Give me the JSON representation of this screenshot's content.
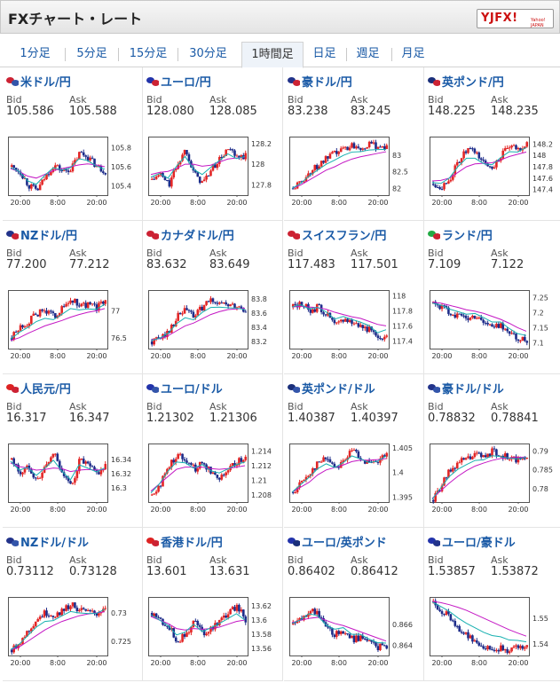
{
  "header": {
    "title": "FXチャート・レート",
    "logo_text": "YJFX!",
    "logo_sub": "Yahoo! JAPAN"
  },
  "tabs": [
    {
      "label": "1分足",
      "active": false
    },
    {
      "label": "5分足",
      "active": false
    },
    {
      "label": "15分足",
      "active": false
    },
    {
      "label": "30分足",
      "active": false
    },
    {
      "label": "1時間足",
      "active": true
    },
    {
      "label": "日足",
      "active": false
    },
    {
      "label": "週足",
      "active": false
    },
    {
      "label": "月足",
      "active": false
    }
  ],
  "labels": {
    "bid": "Bid",
    "ask": "Ask"
  },
  "colors": {
    "up": "#e32626",
    "down": "#1e2d8a",
    "ma_short": "#17b0b0",
    "ma_long": "#c418c4",
    "link": "#1a5aa6"
  },
  "pairs": [
    {
      "name": "米ドル/円",
      "flags": [
        "#cc2233",
        "#3355aa"
      ],
      "bid": "105.586",
      "ask": "105.588",
      "chart_data": {
        "type": "candlestick",
        "x_ticks": [
          "20:00",
          "8:00",
          "20:00"
        ],
        "y_ticks": [
          "105.8",
          "105.6",
          "105.4"
        ],
        "ylim": [
          105.3,
          105.9
        ],
        "path": [
          105.6,
          105.55,
          105.4,
          105.35,
          105.5,
          105.62,
          105.55,
          105.58,
          105.75,
          105.7,
          105.6,
          105.55
        ],
        "trend": [
          105.58,
          105.55,
          105.5,
          105.48,
          105.52,
          105.56,
          105.58,
          105.6,
          105.62,
          105.63,
          105.62,
          105.6
        ]
      }
    },
    {
      "name": "ユーロ/円",
      "flags": [
        "#2233aa",
        "#cc2233"
      ],
      "bid": "128.080",
      "ask": "128.085",
      "chart_data": {
        "type": "candlestick",
        "x_ticks": [
          "20:00",
          "8:00",
          "20:00"
        ],
        "y_ticks": [
          "128.2",
          "128",
          "127.8"
        ],
        "ylim": [
          127.7,
          128.25
        ],
        "path": [
          127.85,
          127.9,
          127.8,
          128.0,
          128.15,
          127.9,
          127.82,
          127.95,
          128.05,
          128.15,
          128.05,
          128.08
        ],
        "trend": [
          127.9,
          127.92,
          127.93,
          127.96,
          128.0,
          128.0,
          127.98,
          127.99,
          128.02,
          128.05,
          128.06,
          128.07
        ]
      }
    },
    {
      "name": "豪ドル/円",
      "flags": [
        "#22338a",
        "#cc2233"
      ],
      "bid": "83.238",
      "ask": "83.245",
      "chart_data": {
        "type": "candlestick",
        "x_ticks": [
          "20:00",
          "8:00",
          "20:00"
        ],
        "y_ticks": [
          "83",
          "82.5",
          "82"
        ],
        "ylim": [
          81.8,
          83.5
        ],
        "path": [
          82.0,
          82.2,
          82.5,
          82.7,
          82.9,
          83.05,
          83.2,
          83.3,
          83.25,
          83.3,
          83.28,
          83.24
        ],
        "trend": [
          82.0,
          82.1,
          82.25,
          82.4,
          82.55,
          82.65,
          82.78,
          82.88,
          82.95,
          83.0,
          83.05,
          83.1
        ]
      }
    },
    {
      "name": "英ポンド/円",
      "flags": [
        "#1a2f7a",
        "#cc2233"
      ],
      "bid": "148.225",
      "ask": "148.235",
      "chart_data": {
        "type": "candlestick",
        "x_ticks": [
          "20:00",
          "8:00",
          "20:00"
        ],
        "y_ticks": [
          "148.2",
          "148",
          "147.8",
          "147.6",
          "147.4"
        ],
        "ylim": [
          147.3,
          148.3
        ],
        "path": [
          147.5,
          147.45,
          147.6,
          147.9,
          148.1,
          148.05,
          147.85,
          147.8,
          148.0,
          148.15,
          148.1,
          148.22
        ],
        "trend": [
          147.55,
          147.56,
          147.6,
          147.7,
          147.8,
          147.85,
          147.86,
          147.87,
          147.92,
          147.98,
          148.02,
          148.06
        ]
      }
    },
    {
      "name": "NZドル/円",
      "flags": [
        "#22338a",
        "#cc2233"
      ],
      "bid": "77.200",
      "ask": "77.212",
      "chart_data": {
        "type": "candlestick",
        "x_ticks": [
          "20:00",
          "8:00",
          "20:00"
        ],
        "y_ticks": [
          "77",
          "76.5"
        ],
        "ylim": [
          76.3,
          77.35
        ],
        "path": [
          76.5,
          76.7,
          76.8,
          76.95,
          77.0,
          76.9,
          77.05,
          77.2,
          77.1,
          77.1,
          77.05,
          77.2
        ],
        "trend": [
          76.45,
          76.5,
          76.58,
          76.65,
          76.72,
          76.77,
          76.82,
          76.88,
          76.93,
          76.97,
          77.0,
          77.04
        ]
      }
    },
    {
      "name": "カナダドル/円",
      "flags": [
        "#cc2233",
        "#cc2233"
      ],
      "bid": "83.632",
      "ask": "83.649",
      "chart_data": {
        "type": "candlestick",
        "x_ticks": [
          "20:00",
          "8:00",
          "20:00"
        ],
        "y_ticks": [
          "83.8",
          "83.6",
          "83.4",
          "83.2"
        ],
        "ylim": [
          83.1,
          83.9
        ],
        "path": [
          83.2,
          83.25,
          83.35,
          83.55,
          83.65,
          83.55,
          83.7,
          83.78,
          83.75,
          83.7,
          83.68,
          83.63
        ],
        "trend": [
          83.22,
          83.24,
          83.28,
          83.35,
          83.42,
          83.46,
          83.52,
          83.58,
          83.62,
          83.65,
          83.66,
          83.67
        ]
      }
    },
    {
      "name": "スイスフラン/円",
      "flags": [
        "#cc2233",
        "#cc2233"
      ],
      "bid": "117.483",
      "ask": "117.501",
      "chart_data": {
        "type": "candlestick",
        "x_ticks": [
          "20:00",
          "8:00",
          "20:00"
        ],
        "y_ticks": [
          "118",
          "117.8",
          "117.6",
          "117.4"
        ],
        "ylim": [
          117.3,
          118.05
        ],
        "path": [
          117.85,
          117.9,
          117.8,
          117.85,
          117.75,
          117.6,
          117.7,
          117.65,
          117.6,
          117.55,
          117.4,
          117.5
        ],
        "trend": [
          117.85,
          117.86,
          117.85,
          117.84,
          117.82,
          117.78,
          117.75,
          117.72,
          117.7,
          117.66,
          117.62,
          117.6
        ]
      }
    },
    {
      "name": "ランド/円",
      "flags": [
        "#22aa44",
        "#cc2233"
      ],
      "bid": "7.109",
      "ask": "7.122",
      "chart_data": {
        "type": "candlestick",
        "x_ticks": [
          "20:00",
          "8:00",
          "20:00"
        ],
        "y_ticks": [
          "7.25",
          "7.2",
          "7.15",
          "7.1"
        ],
        "ylim": [
          7.08,
          7.27
        ],
        "path": [
          7.23,
          7.22,
          7.2,
          7.19,
          7.18,
          7.19,
          7.17,
          7.15,
          7.16,
          7.13,
          7.11,
          7.11
        ],
        "trend": [
          7.235,
          7.232,
          7.225,
          7.218,
          7.21,
          7.205,
          7.198,
          7.188,
          7.178,
          7.165,
          7.15,
          7.138
        ]
      }
    },
    {
      "name": "人民元/円",
      "flags": [
        "#dd2222",
        "#cc2233"
      ],
      "bid": "16.317",
      "ask": "16.347",
      "chart_data": {
        "type": "candlestick",
        "x_ticks": [
          "20:00",
          "8:00",
          "20:00"
        ],
        "y_ticks": [
          "16.34",
          "16.32",
          "16.3"
        ],
        "ylim": [
          16.28,
          16.36
        ],
        "path": [
          16.34,
          16.32,
          16.33,
          16.31,
          16.33,
          16.35,
          16.32,
          16.3,
          16.34,
          16.33,
          16.32,
          16.33
        ],
        "trend": [
          16.335,
          16.33,
          16.328,
          16.325,
          16.326,
          16.328,
          16.327,
          16.323,
          16.325,
          16.326,
          16.325,
          16.326
        ]
      }
    },
    {
      "name": "ユーロ/ドル",
      "flags": [
        "#2233aa",
        "#3355aa"
      ],
      "bid": "1.21302",
      "ask": "1.21306",
      "chart_data": {
        "type": "candlestick",
        "x_ticks": [
          "20:00",
          "8:00",
          "20:00"
        ],
        "y_ticks": [
          "1.214",
          "1.212",
          "1.21",
          "1.208"
        ],
        "ylim": [
          1.207,
          1.2148
        ],
        "path": [
          1.208,
          1.2095,
          1.212,
          1.2135,
          1.213,
          1.2115,
          1.2125,
          1.211,
          1.2105,
          1.2115,
          1.2125,
          1.213
        ],
        "trend": [
          1.2085,
          1.2095,
          1.2105,
          1.2115,
          1.2118,
          1.2118,
          1.2118,
          1.2116,
          1.2115,
          1.2116,
          1.2118,
          1.212
        ]
      }
    },
    {
      "name": "英ポンド/ドル",
      "flags": [
        "#1a2f7a",
        "#3355aa"
      ],
      "bid": "1.40387",
      "ask": "1.40397",
      "chart_data": {
        "type": "candlestick",
        "x_ticks": [
          "20:00",
          "8:00",
          "20:00"
        ],
        "y_ticks": [
          "1.405",
          "1.4",
          "1.395"
        ],
        "ylim": [
          1.394,
          1.4055
        ],
        "path": [
          1.396,
          1.398,
          1.4,
          1.402,
          1.403,
          1.401,
          1.4025,
          1.4045,
          1.403,
          1.4015,
          1.402,
          1.4038
        ],
        "trend": [
          1.396,
          1.397,
          1.398,
          1.3995,
          1.4005,
          1.401,
          1.4015,
          1.4022,
          1.4025,
          1.4025,
          1.4026,
          1.4028
        ]
      }
    },
    {
      "name": "豪ドル/ドル",
      "flags": [
        "#22338a",
        "#3355aa"
      ],
      "bid": "0.78832",
      "ask": "0.78841",
      "chart_data": {
        "type": "candlestick",
        "x_ticks": [
          "20:00",
          "8:00",
          "20:00"
        ],
        "y_ticks": [
          "0.79",
          "0.785",
          "0.78"
        ],
        "ylim": [
          0.7765,
          0.7915
        ],
        "path": [
          0.777,
          0.781,
          0.785,
          0.787,
          0.788,
          0.789,
          0.7885,
          0.79,
          0.789,
          0.788,
          0.7875,
          0.7883
        ],
        "trend": [
          0.7775,
          0.7795,
          0.7815,
          0.7833,
          0.7848,
          0.786,
          0.7868,
          0.7875,
          0.788,
          0.7882,
          0.7883,
          0.7884
        ]
      }
    },
    {
      "name": "NZドル/ドル",
      "flags": [
        "#22338a",
        "#3355aa"
      ],
      "bid": "0.73112",
      "ask": "0.73128",
      "chart_data": {
        "type": "candlestick",
        "x_ticks": [
          "20:00",
          "8:00",
          "20:00"
        ],
        "y_ticks": [
          "0.73",
          "0.725"
        ],
        "ylim": [
          0.7225,
          0.7325
        ],
        "path": [
          0.7235,
          0.725,
          0.727,
          0.729,
          0.73,
          0.7295,
          0.7305,
          0.7315,
          0.7305,
          0.73,
          0.7298,
          0.7311
        ],
        "trend": [
          0.7235,
          0.724,
          0.725,
          0.726,
          0.727,
          0.7278,
          0.7285,
          0.729,
          0.7295,
          0.7298,
          0.73,
          0.7302
        ]
      }
    },
    {
      "name": "香港ドル/円",
      "flags": [
        "#dd2222",
        "#cc2233"
      ],
      "bid": "13.601",
      "ask": "13.631",
      "chart_data": {
        "type": "candlestick",
        "x_ticks": [
          "20:00",
          "8:00",
          "20:00"
        ],
        "y_ticks": [
          "13.62",
          "13.6",
          "13.58",
          "13.56"
        ],
        "ylim": [
          13.55,
          13.63
        ],
        "path": [
          13.61,
          13.6,
          13.59,
          13.57,
          13.58,
          13.6,
          13.58,
          13.59,
          13.6,
          13.61,
          13.62,
          13.6
        ],
        "trend": [
          13.605,
          13.6,
          13.595,
          13.588,
          13.586,
          13.588,
          13.587,
          13.588,
          13.59,
          13.594,
          13.598,
          13.6
        ]
      }
    },
    {
      "name": "ユーロ/英ポンド",
      "flags": [
        "#2233aa",
        "#1a2f7a"
      ],
      "bid": "0.86402",
      "ask": "0.86412",
      "chart_data": {
        "type": "candlestick",
        "x_ticks": [
          "20:00",
          "8:00",
          "20:00"
        ],
        "y_ticks": [
          "0.866",
          "0.864"
        ],
        "ylim": [
          0.863,
          0.8685
        ],
        "path": [
          0.866,
          0.8665,
          0.8675,
          0.867,
          0.8655,
          0.865,
          0.8655,
          0.8645,
          0.8648,
          0.8642,
          0.8638,
          0.864
        ],
        "trend": [
          0.8662,
          0.8664,
          0.8666,
          0.8667,
          0.8664,
          0.8661,
          0.8659,
          0.8656,
          0.8653,
          0.865,
          0.8647,
          0.8644
        ]
      }
    },
    {
      "name": "ユーロ/豪ドル",
      "flags": [
        "#2233aa",
        "#22338a"
      ],
      "bid": "1.53857",
      "ask": "1.53872",
      "chart_data": {
        "type": "candlestick",
        "x_ticks": [
          "20:00",
          "8:00",
          "20:00"
        ],
        "y_ticks": [
          "1.55",
          "1.54"
        ],
        "ylim": [
          1.5355,
          1.5575
        ],
        "path": [
          1.556,
          1.553,
          1.55,
          1.546,
          1.543,
          1.541,
          1.539,
          1.538,
          1.5385,
          1.5375,
          1.5385,
          1.5386
        ],
        "trend": [
          1.5565,
          1.556,
          1.5552,
          1.5542,
          1.553,
          1.5515,
          1.55,
          1.5485,
          1.547,
          1.5455,
          1.5442,
          1.543
        ]
      }
    }
  ]
}
